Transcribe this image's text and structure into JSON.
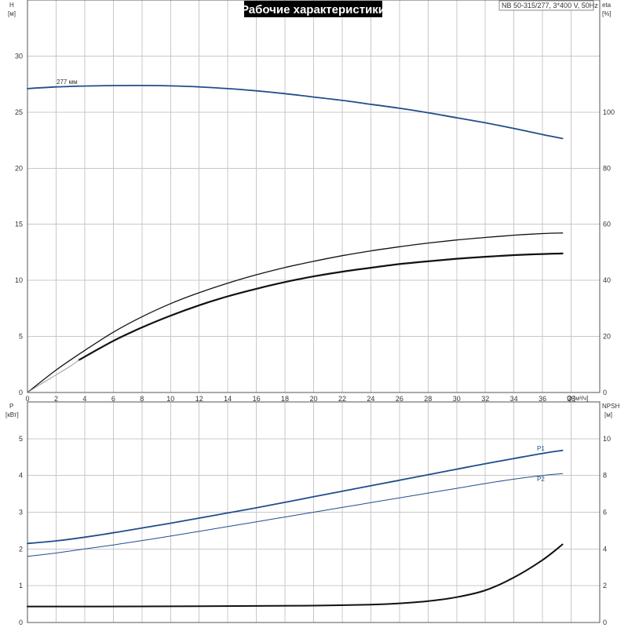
{
  "title": "Рабочие характеристики",
  "model": "NB 50-315/277, 3*400 V, 50Hz",
  "colors": {
    "blue": "#1f4e8c",
    "black": "#111111",
    "grey": "#9a9a9a",
    "title_bg": "#000000"
  },
  "chart_data": [
    {
      "id": "top",
      "type": "line",
      "x_axis": {
        "label": "Q [м³/ч]",
        "range": [
          0,
          40
        ],
        "ticks": [
          0,
          2,
          4,
          6,
          8,
          10,
          12,
          14,
          16,
          18,
          20,
          22,
          24,
          26,
          28,
          30,
          32,
          34,
          36,
          38
        ]
      },
      "y_left": {
        "label": "H",
        "unit": "[м]",
        "range": [
          0,
          35
        ],
        "ticks": [
          0,
          5,
          10,
          15,
          20,
          25,
          30
        ]
      },
      "y_right": {
        "label": "eta",
        "unit": "[%]",
        "range": [
          0,
          140
        ],
        "ticks": [
          0,
          20,
          40,
          60,
          80,
          100
        ]
      },
      "grid": true,
      "series": [
        {
          "name": "277 мм",
          "axis": "left",
          "color": "blue",
          "width": 1.8,
          "x": [
            0,
            2,
            4,
            6,
            8,
            10,
            12,
            14,
            16,
            18,
            20,
            22,
            24,
            26,
            28,
            30,
            32,
            34,
            36,
            37.4
          ],
          "y": [
            27.1,
            27.25,
            27.33,
            27.37,
            27.38,
            27.34,
            27.25,
            27.1,
            26.9,
            26.65,
            26.35,
            26.05,
            25.7,
            25.35,
            24.95,
            24.5,
            24.05,
            23.55,
            23.0,
            22.65
          ]
        },
        {
          "name": "",
          "axis": "right",
          "color": "black",
          "width": 1.3,
          "x": [
            0,
            2,
            4,
            6,
            8,
            10,
            12,
            14,
            16,
            18,
            20,
            22,
            24,
            26,
            28,
            30,
            32,
            34,
            36,
            37.4
          ],
          "y": [
            0,
            8,
            15,
            21.5,
            27,
            31.7,
            35.6,
            39,
            42,
            44.6,
            46.8,
            48.8,
            50.5,
            52,
            53.3,
            54.4,
            55.3,
            56.1,
            56.7,
            56.9
          ]
        },
        {
          "name": "",
          "axis": "right",
          "color": "black",
          "width": 2.2,
          "x": [
            3.6,
            6,
            8,
            10,
            12,
            14,
            16,
            18,
            20,
            22,
            24,
            26,
            28,
            30,
            32,
            34,
            36,
            37.4
          ],
          "y": [
            11.6,
            18.4,
            23.2,
            27.4,
            31.1,
            34.3,
            37,
            39.4,
            41.4,
            43.1,
            44.5,
            45.8,
            46.8,
            47.7,
            48.4,
            49,
            49.4,
            49.6
          ]
        },
        {
          "name": "",
          "axis": "right",
          "color": "grey",
          "width": 1,
          "x": [
            0,
            1,
            2,
            3,
            3.6
          ],
          "y": [
            0,
            3.2,
            6.3,
            9.4,
            11.6
          ]
        }
      ]
    },
    {
      "id": "bottom",
      "type": "line",
      "x_axis": {
        "label": "",
        "range": [
          0,
          40
        ],
        "ticks": []
      },
      "y_left": {
        "label": "P",
        "unit": "[кВт]",
        "range": [
          0,
          6
        ],
        "ticks": [
          0,
          1,
          2,
          3,
          4,
          5
        ]
      },
      "y_right": {
        "label": "NPSH",
        "unit": "[м]",
        "range": [
          0,
          12
        ],
        "ticks": [
          0,
          2,
          4,
          6,
          8,
          10
        ]
      },
      "grid": true,
      "series": [
        {
          "name": "P1",
          "axis": "left",
          "color": "blue",
          "width": 1.8,
          "x": [
            0,
            2,
            4,
            6,
            8,
            10,
            12,
            14,
            16,
            18,
            20,
            22,
            24,
            26,
            28,
            30,
            32,
            34,
            36,
            37.4
          ],
          "y": [
            2.15,
            2.22,
            2.32,
            2.44,
            2.57,
            2.7,
            2.84,
            2.98,
            3.12,
            3.27,
            3.42,
            3.57,
            3.72,
            3.87,
            4.02,
            4.17,
            4.32,
            4.46,
            4.6,
            4.68
          ]
        },
        {
          "name": "P2",
          "axis": "left",
          "color": "blue",
          "width": 1,
          "x": [
            0,
            2,
            4,
            6,
            8,
            10,
            12,
            14,
            16,
            18,
            20,
            22,
            24,
            26,
            28,
            30,
            32,
            34,
            36,
            37.4
          ],
          "y": [
            1.8,
            1.89,
            2.0,
            2.11,
            2.23,
            2.35,
            2.48,
            2.61,
            2.74,
            2.87,
            3.0,
            3.13,
            3.26,
            3.39,
            3.52,
            3.65,
            3.78,
            3.9,
            4.0,
            4.05
          ]
        },
        {
          "name": "",
          "axis": "right",
          "color": "black",
          "width": 2,
          "x": [
            0,
            4,
            10,
            16,
            20,
            24,
            26,
            28,
            30,
            32,
            34,
            36,
            37.4
          ],
          "y": [
            0.87,
            0.87,
            0.88,
            0.9,
            0.92,
            0.97,
            1.04,
            1.16,
            1.38,
            1.75,
            2.45,
            3.4,
            4.25
          ]
        }
      ]
    }
  ]
}
